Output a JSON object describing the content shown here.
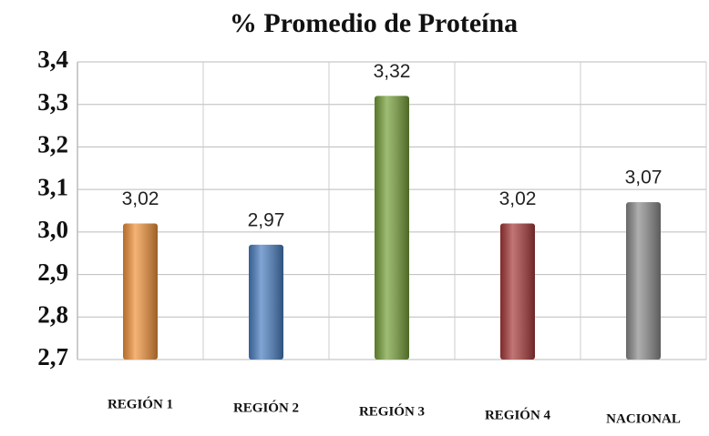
{
  "chart_data": {
    "type": "bar",
    "title": "% Promedio de Proteína",
    "categories": [
      "REGIÓN 1",
      "REGIÓN 2",
      "REGIÓN 3",
      "REGIÓN 4",
      "NACIONAL"
    ],
    "values": [
      3.02,
      2.97,
      3.32,
      3.02,
      3.07
    ],
    "value_labels": [
      "3,02",
      "2,97",
      "3,32",
      "3,02",
      "3,07"
    ],
    "colors": [
      "#f0923a",
      "#4a7fc1",
      "#77a03a",
      "#a83a3a",
      "#8c8c8c"
    ],
    "ylim": [
      2.7,
      3.4
    ],
    "yticks": [
      {
        "value": 2.7,
        "label": "2,7"
      },
      {
        "value": 2.8,
        "label": "2,8"
      },
      {
        "value": 2.9,
        "label": "2,9"
      },
      {
        "value": 3.0,
        "label": "3,0"
      },
      {
        "value": 3.1,
        "label": "3,1"
      },
      {
        "value": 3.2,
        "label": "3,2"
      },
      {
        "value": 3.3,
        "label": "3,3"
      },
      {
        "value": 3.4,
        "label": "3,4"
      }
    ],
    "grid": true
  }
}
